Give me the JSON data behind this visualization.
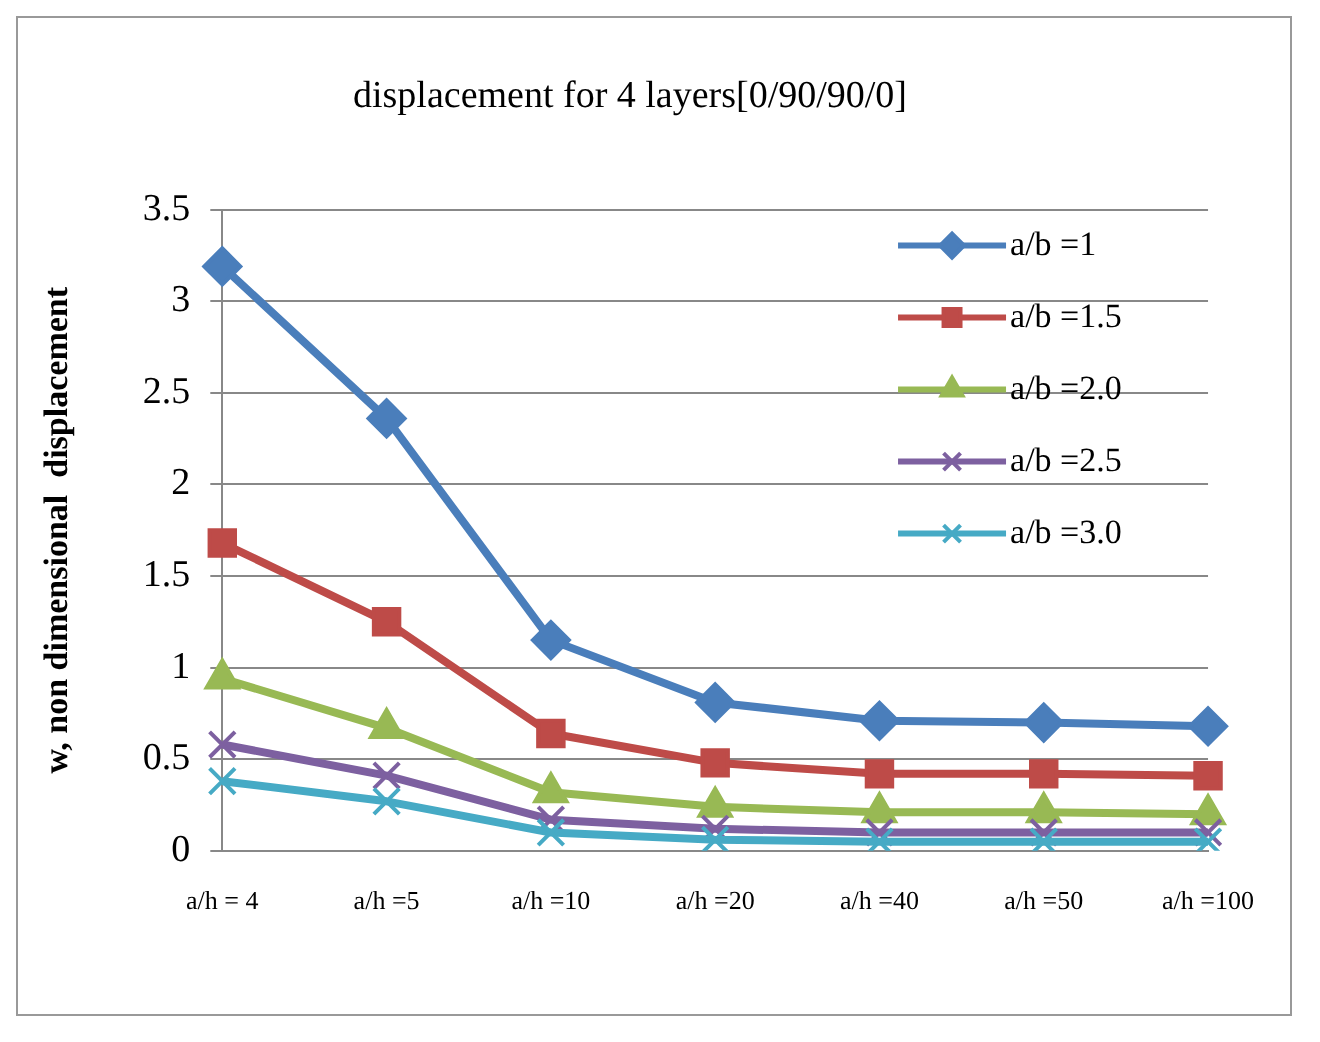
{
  "chart_data": {
    "type": "line",
    "title": "displacement for 4 layers[0/90/90/0]",
    "ylabel": "w, non dimensional  displacement",
    "categories": [
      "a/h = 4",
      "a/h =5",
      "a/h =10",
      "a/h =20",
      "a/h =40",
      "a/h =50",
      "a/h =100"
    ],
    "ylim": [
      0,
      3.5
    ],
    "yticks": [
      0,
      0.5,
      1,
      1.5,
      2,
      2.5,
      3,
      3.5
    ],
    "grid": "y",
    "legend": "top right",
    "line_style": "solid",
    "series": [
      {
        "name": "a/b =1",
        "color": "#4a7ebb",
        "marker": "diamond",
        "values": [
          3.19,
          2.36,
          1.15,
          0.81,
          0.71,
          0.7,
          0.68
        ]
      },
      {
        "name": "a/b =1.5",
        "color": "#be4b48",
        "marker": "square",
        "values": [
          1.68,
          1.25,
          0.64,
          0.48,
          0.42,
          0.42,
          0.41
        ]
      },
      {
        "name": "a/b =2.0",
        "color": "#98b954",
        "marker": "triangle",
        "values": [
          0.94,
          0.67,
          0.32,
          0.24,
          0.21,
          0.21,
          0.2
        ]
      },
      {
        "name": "a/b =2.5",
        "color": "#7d60a0",
        "marker": "cross",
        "values": [
          0.58,
          0.41,
          0.17,
          0.12,
          0.1,
          0.1,
          0.1
        ]
      },
      {
        "name": "a/b =3.0",
        "color": "#46aac5",
        "marker": "cross",
        "values": [
          0.38,
          0.27,
          0.1,
          0.06,
          0.05,
          0.05,
          0.05
        ]
      }
    ]
  }
}
